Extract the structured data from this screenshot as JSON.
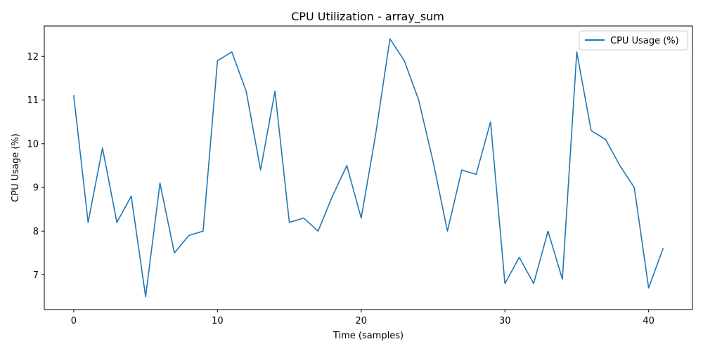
{
  "chart_data": {
    "type": "line",
    "title": "CPU Utilization - array_sum",
    "xlabel": "Time (samples)",
    "ylabel": "CPU Usage (%)",
    "xlim": [
      -2.05,
      43.05
    ],
    "ylim": [
      6.205,
      12.695
    ],
    "xticks": [
      0,
      10,
      20,
      30,
      40
    ],
    "yticks": [
      7,
      8,
      9,
      10,
      11,
      12
    ],
    "grid": false,
    "legend_position": "top-right",
    "series": [
      {
        "name": "CPU Usage (%)",
        "color": "#1f77b4",
        "x": [
          0,
          1,
          2,
          3,
          4,
          5,
          6,
          7,
          8,
          9,
          10,
          11,
          12,
          13,
          14,
          15,
          16,
          17,
          18,
          19,
          20,
          21,
          22,
          23,
          24,
          25,
          26,
          27,
          28,
          29,
          30,
          31,
          32,
          33,
          34,
          35,
          36,
          37,
          38,
          39,
          40,
          41
        ],
        "y": [
          11.1,
          8.2,
          9.9,
          8.2,
          8.8,
          6.5,
          9.1,
          7.5,
          7.9,
          8.0,
          11.9,
          12.1,
          11.2,
          9.4,
          11.2,
          8.2,
          8.3,
          8.0,
          8.8,
          9.5,
          8.3,
          10.2,
          12.4,
          11.9,
          11.0,
          9.6,
          8.0,
          9.4,
          9.3,
          10.5,
          6.8,
          7.4,
          6.8,
          8.0,
          6.9,
          12.1,
          10.3,
          10.1,
          9.5,
          9.0,
          6.7,
          7.6
        ]
      }
    ]
  }
}
